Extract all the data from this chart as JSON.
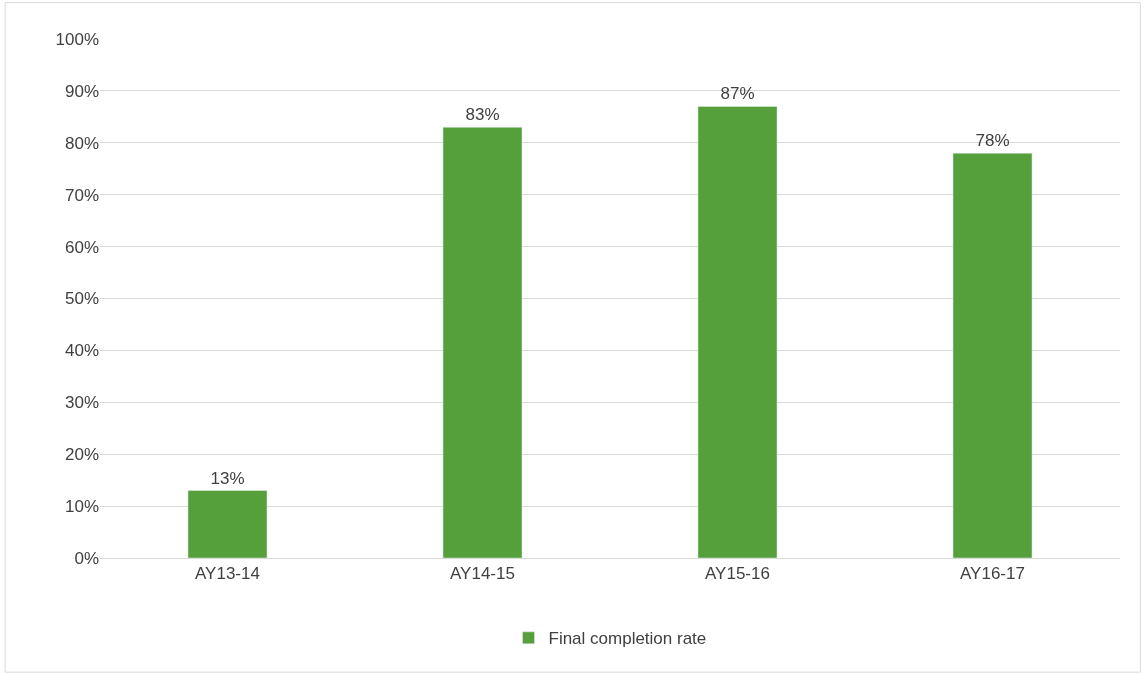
{
  "chart_data": {
    "type": "bar",
    "categories": [
      "AY13-14",
      "AY14-15",
      "AY15-16",
      "AY16-17"
    ],
    "series": [
      {
        "name": "Final completion rate",
        "color": "#55a03a",
        "values": [
          13,
          83,
          87,
          78
        ],
        "value_labels": [
          "13%",
          "83%",
          "87%",
          "78%"
        ]
      }
    ],
    "ylim": [
      0,
      100
    ],
    "yticks": [
      {
        "value": 0,
        "label": "0%"
      },
      {
        "value": 10,
        "label": "10%"
      },
      {
        "value": 20,
        "label": "20%"
      },
      {
        "value": 30,
        "label": "30%"
      },
      {
        "value": 40,
        "label": "40%"
      },
      {
        "value": 50,
        "label": "50%"
      },
      {
        "value": 60,
        "label": "60%"
      },
      {
        "value": 70,
        "label": "70%"
      },
      {
        "value": 80,
        "label": "80%"
      },
      {
        "value": 90,
        "label": "90%"
      },
      {
        "value": 100,
        "label": "100%"
      }
    ],
    "grid": "y",
    "legend": "bottom"
  }
}
